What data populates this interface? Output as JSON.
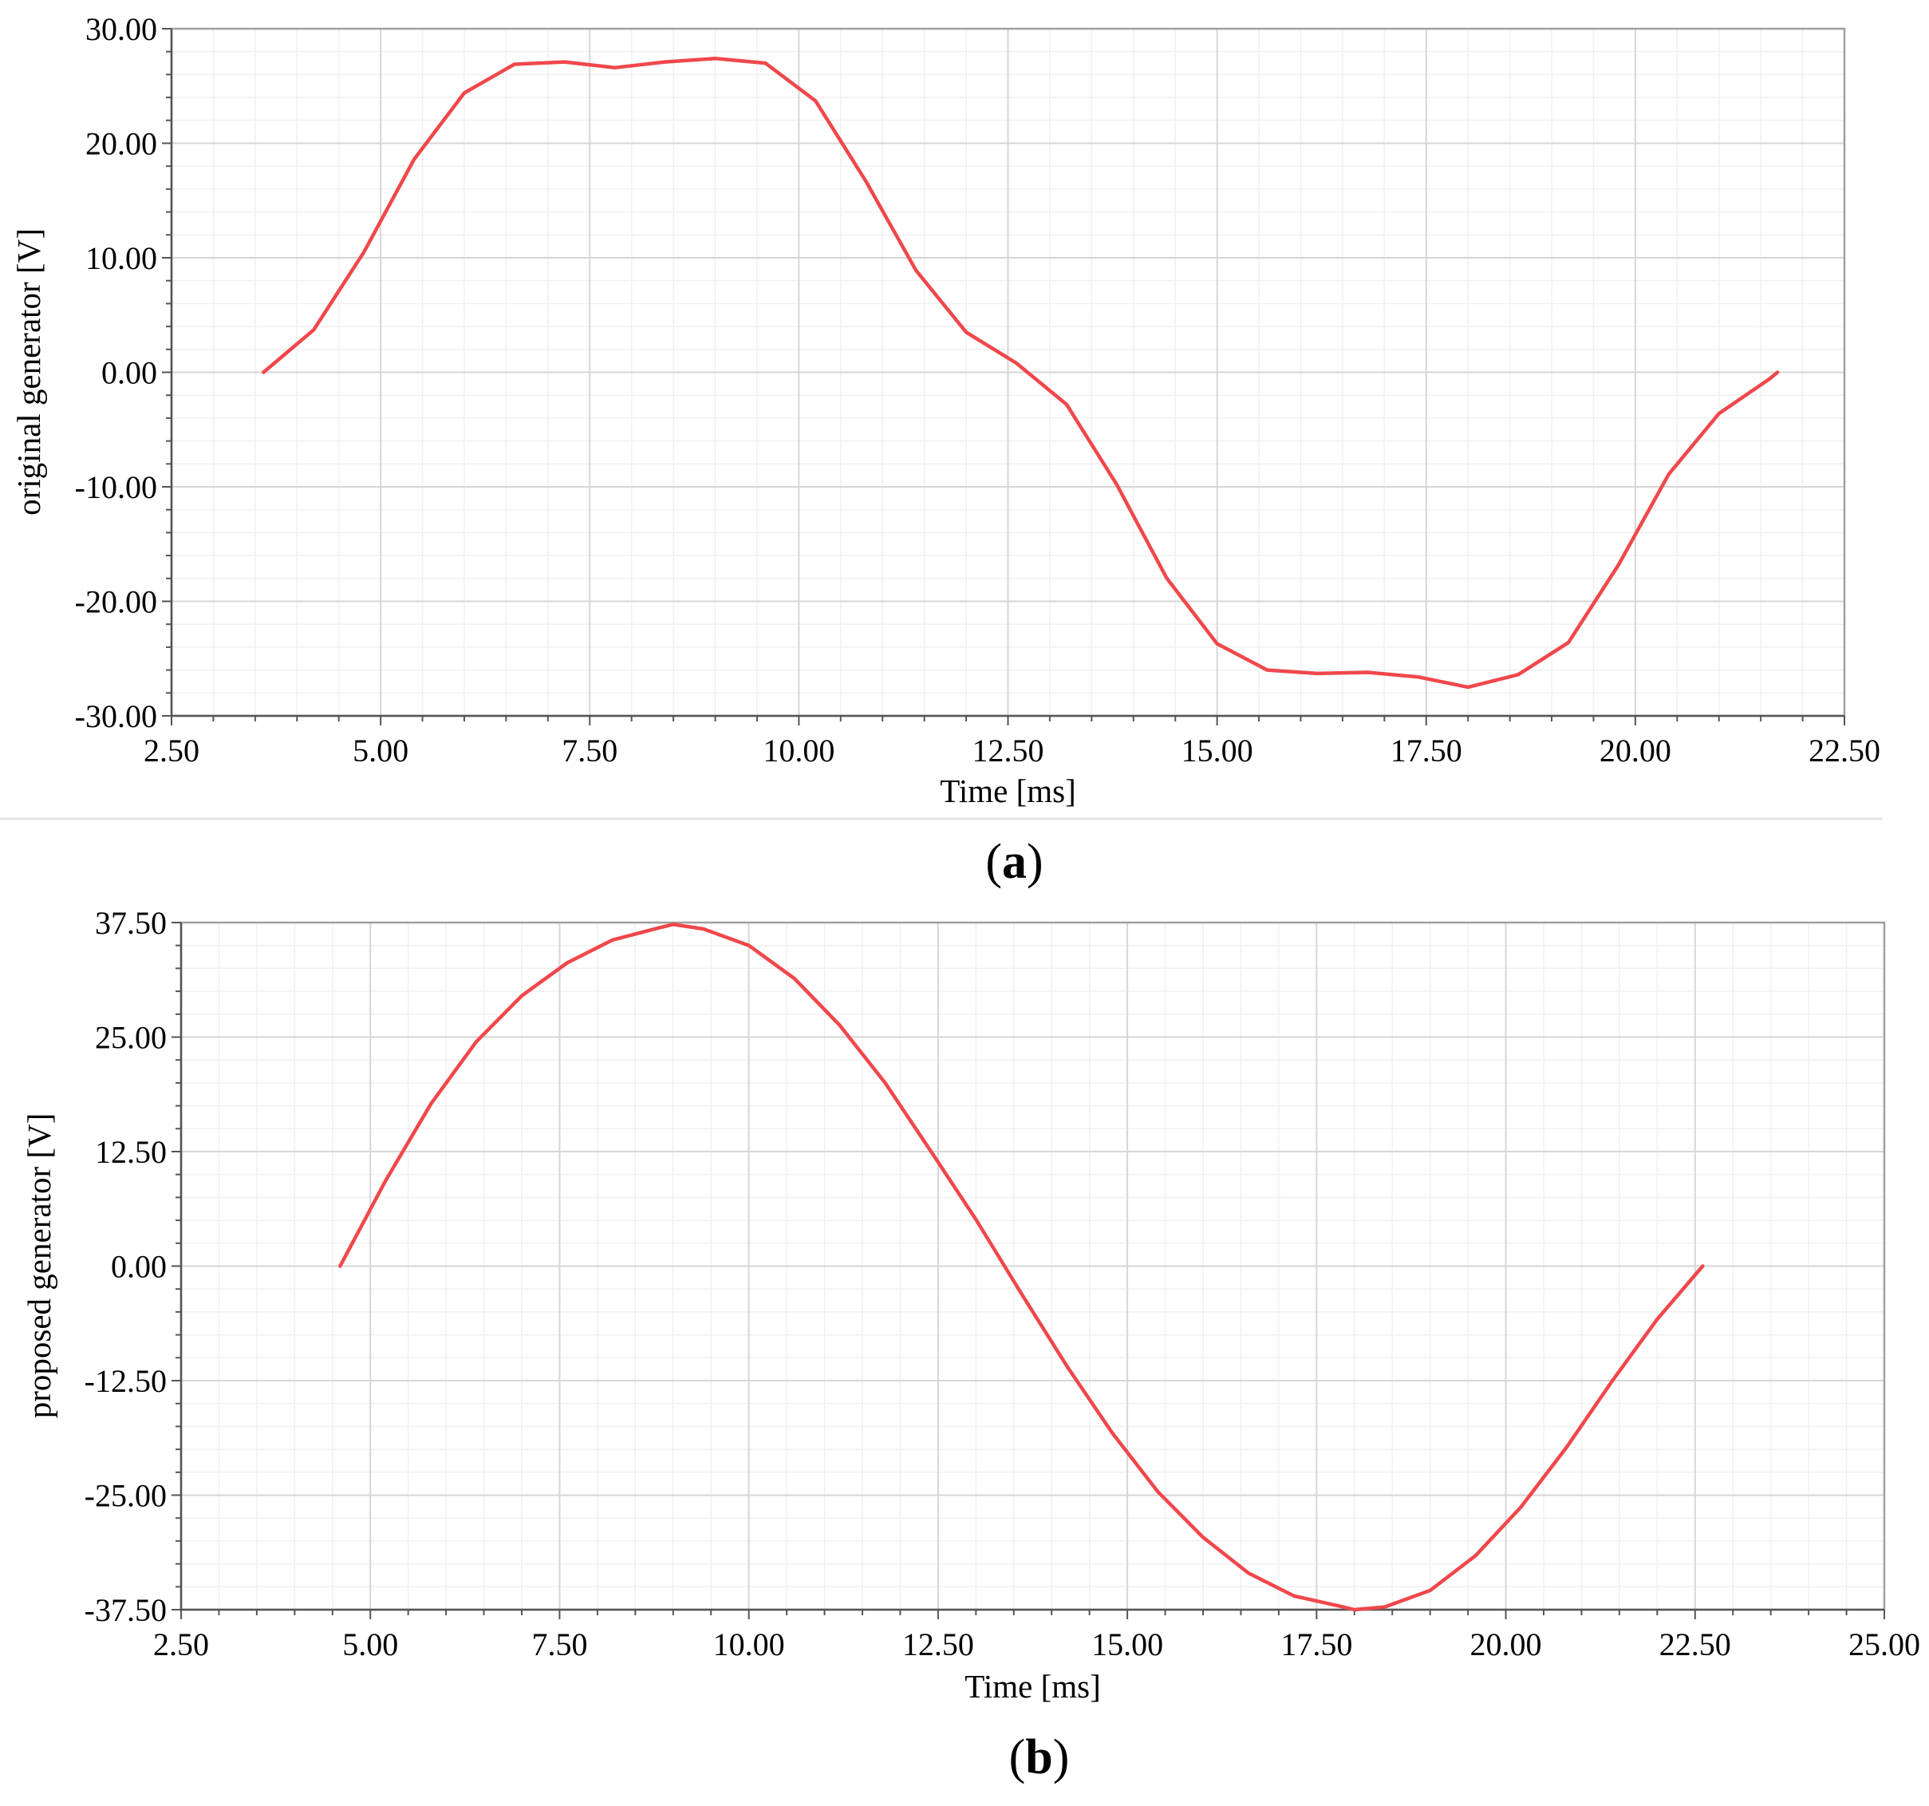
{
  "chart_data": [
    {
      "type": "line",
      "panel_label": "a",
      "xlabel": "Time [ms]",
      "ylabel": "original generator [V]",
      "xlim": [
        2.5,
        22.5
      ],
      "ylim": [
        -30,
        30
      ],
      "xticks": [
        "2.50",
        "5.00",
        "7.50",
        "10.00",
        "12.50",
        "15.00",
        "17.50",
        "20.00",
        "22.50"
      ],
      "yticks": [
        "30.00",
        "20.00",
        "10.00",
        "0.00",
        "-10.00",
        "-20.00",
        "-30.00"
      ],
      "grid": true,
      "line_color": "#f0474b",
      "x": [
        3.6,
        4.2,
        4.8,
        5.4,
        6.0,
        6.6,
        7.2,
        7.8,
        8.4,
        9.0,
        9.6,
        10.2,
        10.8,
        11.4,
        12.0,
        12.6,
        13.2,
        13.8,
        14.4,
        15.0,
        15.6,
        16.2,
        16.8,
        17.4,
        18.0,
        18.6,
        19.2,
        19.8,
        20.4,
        21.0,
        21.6,
        21.7
      ],
      "y": [
        0.0,
        3.7,
        10.5,
        18.6,
        24.4,
        26.9,
        27.1,
        26.6,
        27.1,
        27.4,
        27.0,
        23.7,
        16.7,
        8.9,
        3.5,
        0.8,
        -2.8,
        -9.8,
        -18.0,
        -23.7,
        -26.0,
        -26.3,
        -26.2,
        -26.6,
        -27.5,
        -26.4,
        -23.6,
        -16.8,
        -8.9,
        -3.6,
        -0.6,
        0.0
      ]
    },
    {
      "type": "line",
      "panel_label": "b",
      "xlabel": "Time [ms]",
      "ylabel": "proposed generator [V]",
      "xlim": [
        2.5,
        25.0
      ],
      "ylim": [
        -37.5,
        37.5
      ],
      "xticks": [
        "2.50",
        "5.00",
        "7.50",
        "10.00",
        "12.50",
        "15.00",
        "17.50",
        "20.00",
        "22.50",
        "25.00"
      ],
      "yticks": [
        "37.50",
        "25.00",
        "12.50",
        "0.00",
        "-12.50",
        "-25.00",
        "-37.50"
      ],
      "grid": true,
      "line_color": "#f0474b",
      "x": [
        4.6,
        5.2,
        5.8,
        6.4,
        7.0,
        7.6,
        8.2,
        8.8,
        9.0,
        9.4,
        10.0,
        10.6,
        11.2,
        11.8,
        12.4,
        13.0,
        13.6,
        14.2,
        14.8,
        15.4,
        16.0,
        16.6,
        17.2,
        17.8,
        18.0,
        18.4,
        19.0,
        19.6,
        20.2,
        20.8,
        21.4,
        22.0,
        22.6
      ],
      "y": [
        0.0,
        9.3,
        17.7,
        24.5,
        29.5,
        33.1,
        35.6,
        36.9,
        37.3,
        36.8,
        35.0,
        31.4,
        26.3,
        20.0,
        12.6,
        5.1,
        -3.0,
        -10.9,
        -18.2,
        -24.6,
        -29.6,
        -33.5,
        -36.0,
        -37.1,
        -37.5,
        -37.2,
        -35.4,
        -31.6,
        -26.3,
        -19.8,
        -12.6,
        -5.8,
        0.0
      ]
    }
  ]
}
